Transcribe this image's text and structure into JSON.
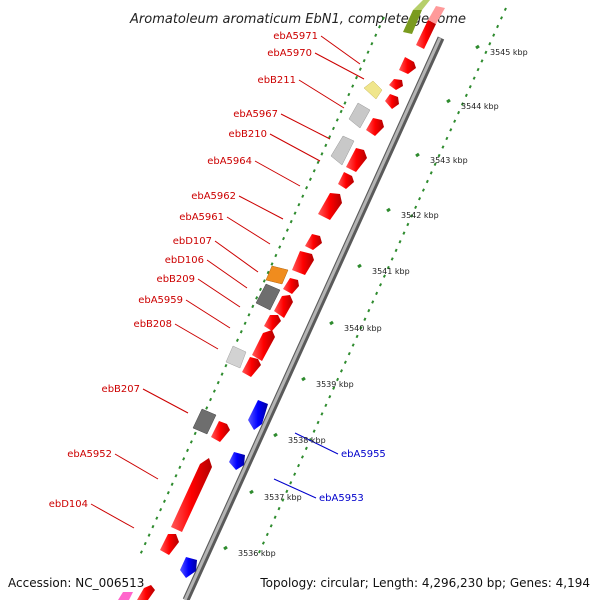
{
  "title": "Aromatoleum aromaticum EbN1, complete genome",
  "footer": {
    "accession": "Accession: NC_006513",
    "topology": "Topology: circular; Length: 4,296,230 bp; Genes: 4,194"
  },
  "colors": {
    "forward": "#ff0000",
    "reverse": "#0000ff",
    "label_forward": "#cc0000",
    "label_reverse": "#0000cc",
    "ticks": "#2e8b2e",
    "backbone": "#8c8c8c"
  },
  "scale": {
    "unit": "kbp",
    "labels": [
      "3536 kbp",
      "3537 kbp",
      "3538 kbp",
      "3539 kbp",
      "3540 kbp",
      "3541 kbp",
      "3542 kbp",
      "3543 kbp",
      "3544 kbp",
      "3545 kbp"
    ]
  },
  "gene_labels_left": [
    "ebA5971",
    "ebA5970",
    "ebB211",
    "ebA5967",
    "ebB210",
    "ebA5964",
    "ebA5962",
    "ebA5961",
    "ebD107",
    "ebD106",
    "ebB209",
    "ebA5959",
    "ebB208",
    "ebB207",
    "ebA5952",
    "ebD104"
  ],
  "gene_labels_right": [
    "ebA5955",
    "ebA5953"
  ]
}
